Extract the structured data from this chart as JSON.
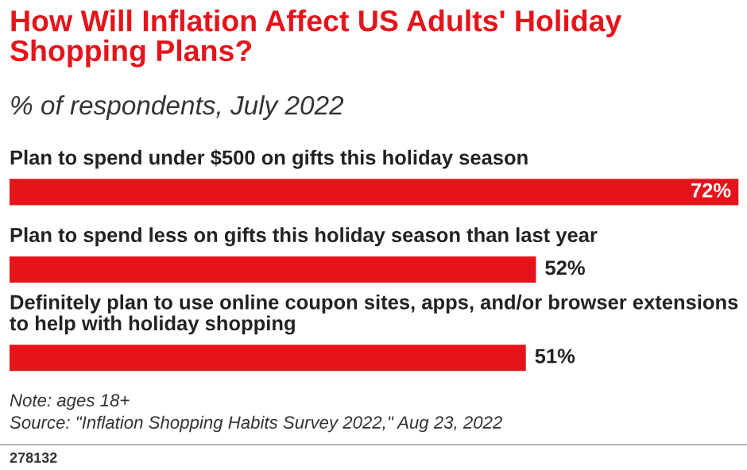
{
  "chart_data": {
    "type": "bar",
    "orientation": "horizontal",
    "title": "How Will Inflation Affect US Adults' Holiday\nShopping Plans?",
    "subtitle": "% of respondents, July 2022",
    "categories": [
      "Plan to spend under $500 on gifts this holiday season",
      "Plan to spend less on gifts this holiday season than last year",
      "Definitely plan to use online coupon sites, apps, and/or browser extensions\nto help with holiday shopping"
    ],
    "values": [
      72,
      52,
      51
    ],
    "value_labels": [
      "72%",
      "52%",
      "51%"
    ],
    "color": "#e5141b",
    "annotations": [
      "Note: ages 18+",
      "Source: \"Inflation Shopping Habits Survey 2022,\" Aug 23, 2022",
      "278132"
    ]
  }
}
